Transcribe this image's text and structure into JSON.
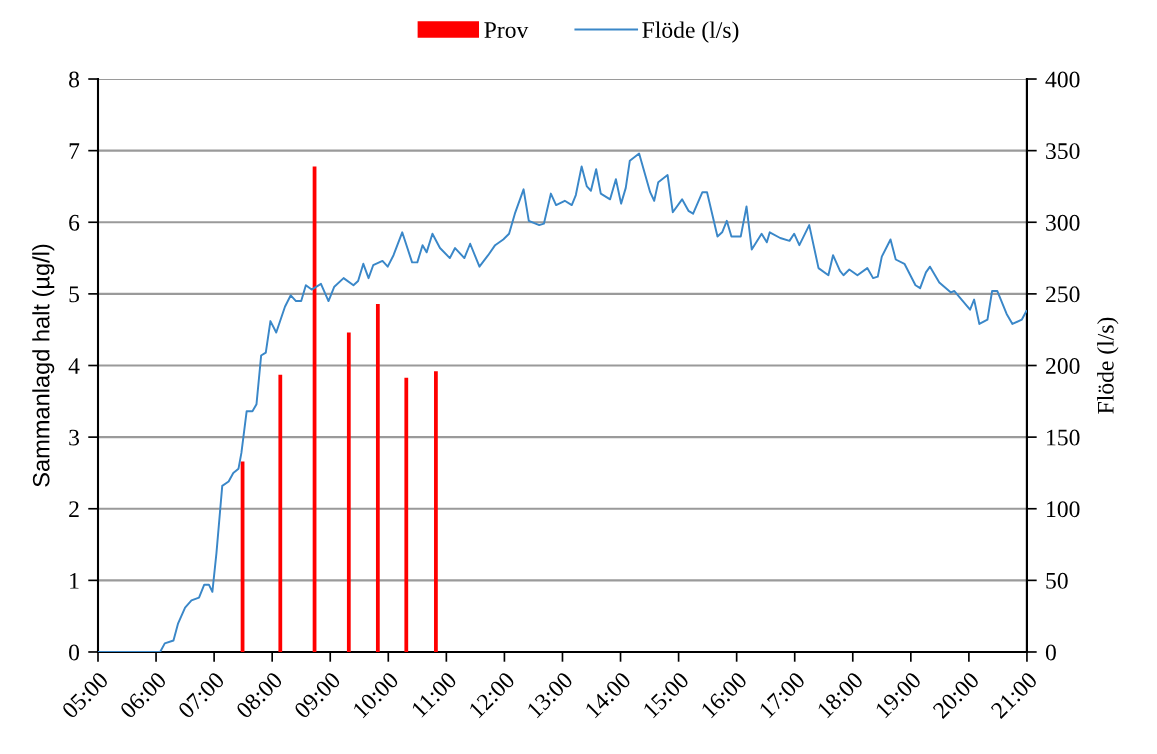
{
  "chart_data": {
    "type": "bar",
    "series": [
      {
        "name": "Prov",
        "color": "#ff0000",
        "x": [
          7.49,
          8.14,
          8.73,
          9.32,
          9.82,
          10.31,
          10.82
        ],
        "values": [
          2.66,
          3.87,
          6.78,
          4.46,
          4.86,
          3.83,
          3.92
        ]
      },
      {
        "name": "Flöde (l/s)",
        "type": "line",
        "axis": "y2",
        "color": "#3a87c8",
        "x": [
          5.0,
          5.5,
          6.07,
          6.15,
          6.3,
          6.38,
          6.5,
          6.61,
          6.74,
          6.83,
          6.91,
          6.97,
          7.04,
          7.14,
          7.25,
          7.33,
          7.42,
          7.47,
          7.56,
          7.66,
          7.73,
          7.81,
          7.89,
          7.97,
          8.07,
          8.22,
          8.32,
          8.41,
          8.5,
          8.58,
          8.68,
          8.84,
          8.97,
          9.07,
          9.23,
          9.4,
          9.48,
          9.57,
          9.66,
          9.74,
          9.9,
          9.99,
          10.09,
          10.24,
          10.41,
          10.5,
          10.59,
          10.66,
          10.76,
          10.89,
          11.06,
          11.15,
          11.31,
          11.41,
          11.57,
          11.72,
          11.84,
          11.98,
          12.08,
          12.18,
          12.33,
          12.42,
          12.6,
          12.68,
          12.8,
          12.89,
          13.04,
          13.16,
          13.23,
          13.33,
          13.42,
          13.49,
          13.58,
          13.66,
          13.82,
          13.92,
          14.01,
          14.09,
          14.16,
          14.32,
          14.51,
          14.58,
          14.65,
          14.81,
          14.9,
          15.06,
          15.17,
          15.25,
          15.41,
          15.49,
          15.67,
          15.75,
          15.83,
          15.91,
          16.07,
          16.17,
          16.26,
          16.43,
          16.52,
          16.57,
          16.75,
          16.91,
          16.99,
          17.08,
          17.25,
          17.41,
          17.58,
          17.66,
          17.78,
          17.84,
          17.94,
          18.08,
          18.25,
          18.35,
          18.43,
          18.5,
          18.65,
          18.74,
          18.89,
          19.08,
          19.16,
          19.26,
          19.33,
          19.49,
          19.69,
          19.75,
          20.02,
          20.09,
          20.18,
          20.32,
          20.4,
          20.49,
          20.65,
          20.75,
          20.91,
          20.99
        ],
        "values": [
          0,
          0,
          0,
          6,
          8,
          20,
          31,
          36,
          38,
          47,
          47,
          42,
          69,
          116,
          119,
          125,
          128,
          139,
          168,
          168,
          173,
          207,
          209,
          231,
          223,
          241,
          249,
          245,
          245,
          256,
          253,
          257,
          245,
          255,
          261,
          256,
          259,
          271,
          261,
          270,
          273,
          269,
          277,
          293,
          272,
          272,
          284,
          279,
          292,
          282,
          275,
          282,
          275,
          285,
          269,
          277,
          284,
          288,
          292,
          306,
          323,
          301,
          298,
          299,
          320,
          312,
          315,
          312,
          319,
          339,
          325,
          322,
          337,
          320,
          316,
          330,
          313,
          324,
          343,
          348,
          321,
          315,
          328,
          333,
          307,
          316,
          308,
          306,
          321,
          321,
          290,
          293,
          301,
          290,
          290,
          311,
          281,
          292,
          286,
          293,
          289,
          287,
          292,
          284,
          298,
          268,
          263,
          277,
          266,
          263,
          267,
          263,
          268,
          261,
          262,
          276,
          288,
          274,
          271,
          256,
          254,
          265,
          269,
          258,
          251,
          252,
          239,
          246,
          229,
          232,
          252,
          252,
          236,
          229,
          232,
          238
        ]
      }
    ],
    "xlim": [
      5,
      21
    ],
    "xticks": [
      {
        "value": 5,
        "label": "05:00"
      },
      {
        "value": 6,
        "label": "06:00"
      },
      {
        "value": 7,
        "label": "07:00"
      },
      {
        "value": 8,
        "label": "08:00"
      },
      {
        "value": 9,
        "label": "09:00"
      },
      {
        "value": 10,
        "label": "10:00"
      },
      {
        "value": 11,
        "label": "11:00"
      },
      {
        "value": 12,
        "label": "12:00"
      },
      {
        "value": 13,
        "label": "13:00"
      },
      {
        "value": 14,
        "label": "14:00"
      },
      {
        "value": 15,
        "label": "15:00"
      },
      {
        "value": 16,
        "label": "16:00"
      },
      {
        "value": 17,
        "label": "17:00"
      },
      {
        "value": 18,
        "label": "18:00"
      },
      {
        "value": 19,
        "label": "19:00"
      },
      {
        "value": 20,
        "label": "20:00"
      },
      {
        "value": 21,
        "label": "21:00"
      }
    ],
    "ylim": [
      0,
      8
    ],
    "yticks": [
      0,
      1,
      2,
      3,
      4,
      5,
      6,
      7,
      8
    ],
    "y2lim": [
      0,
      400
    ],
    "y2ticks": [
      0,
      50,
      100,
      150,
      200,
      250,
      300,
      350,
      400
    ],
    "ylabel": "Sammanlagd halt (µg/l)",
    "y2label": "Flöde (l/s)",
    "grid": "y",
    "legend": "top"
  }
}
